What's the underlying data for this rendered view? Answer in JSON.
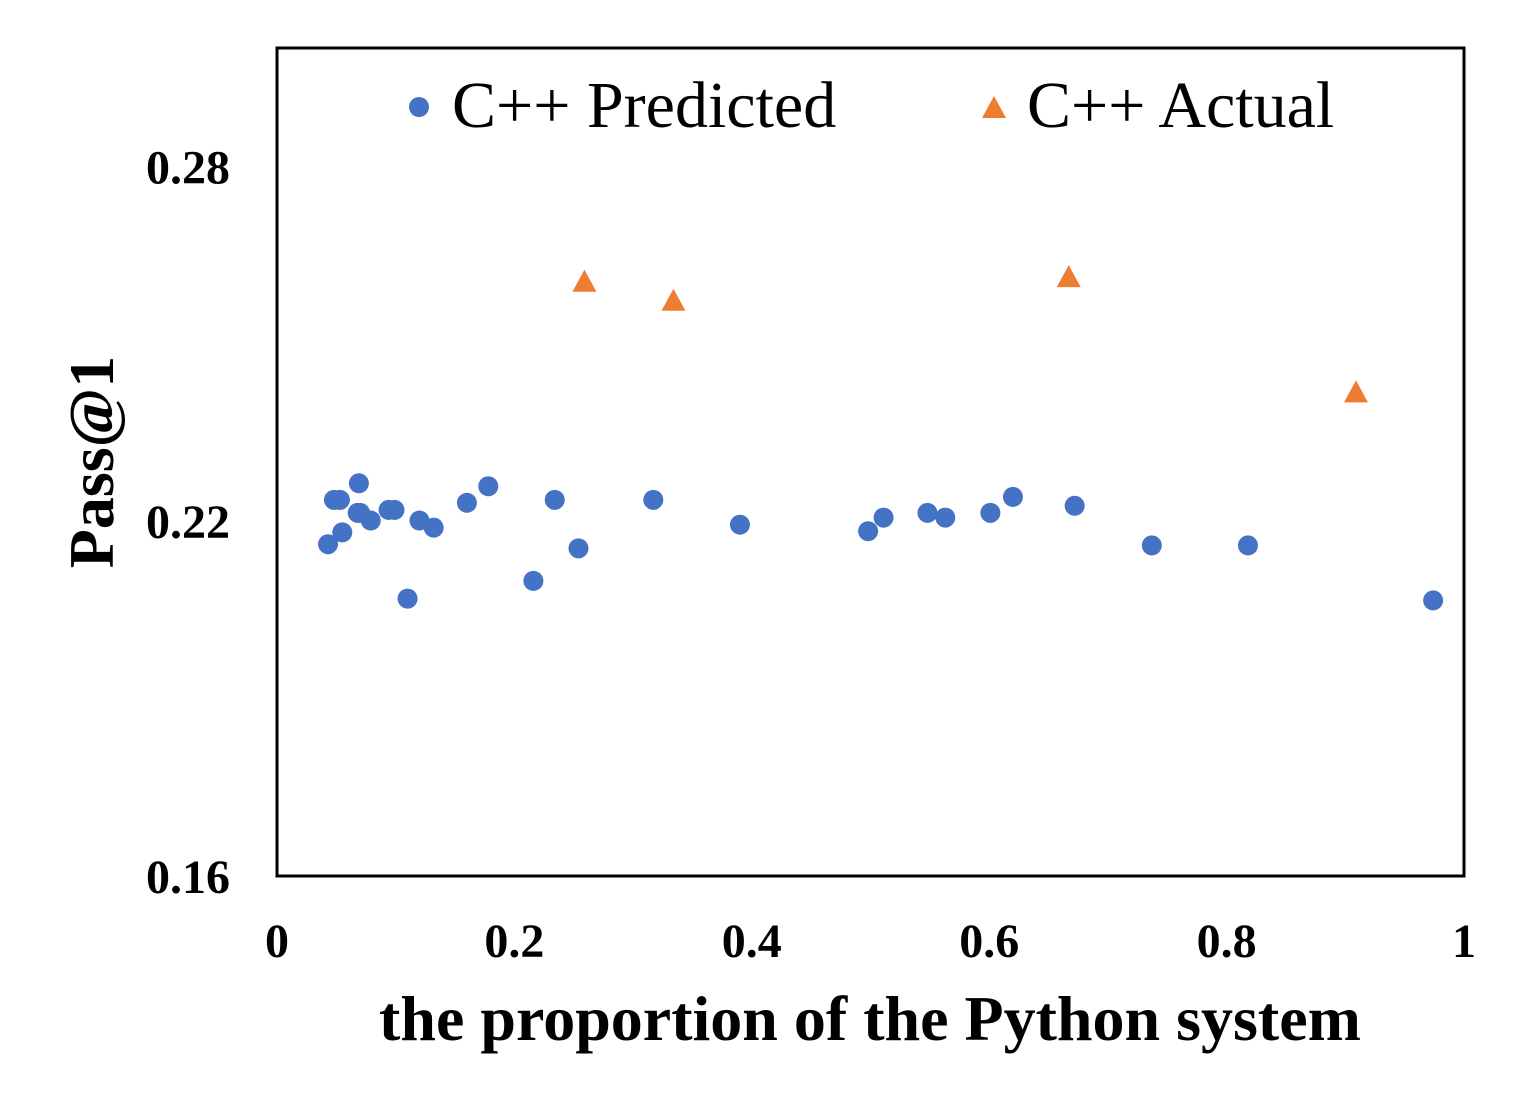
{
  "chart_data": {
    "type": "scatter",
    "title": "",
    "xlabel": "the proportion of the Python system",
    "ylabel": "Pass@1",
    "xlim": [
      0,
      1
    ],
    "ylim": [
      0.16,
      0.3
    ],
    "xticks": [
      0,
      0.2,
      0.4,
      0.6,
      0.8,
      1
    ],
    "xtick_labels": [
      "0",
      "0.2",
      "0.4",
      "0.6",
      "0.8",
      "1"
    ],
    "yticks": [
      0.16,
      0.22,
      0.28
    ],
    "ytick_labels": [
      "0.16",
      "0.22",
      "0.28"
    ],
    "grid": false,
    "legend_position": "top",
    "series": [
      {
        "name": "C++ Predicted",
        "marker": "circle",
        "color": "#4472C4",
        "x": [
          0.043,
          0.048,
          0.053,
          0.055,
          0.068,
          0.069,
          0.07,
          0.079,
          0.094,
          0.099,
          0.11,
          0.12,
          0.132,
          0.16,
          0.178,
          0.216,
          0.234,
          0.254,
          0.317,
          0.39,
          0.498,
          0.511,
          0.548,
          0.563,
          0.601,
          0.62,
          0.672,
          0.737,
          0.818,
          0.974
        ],
        "y": [
          0.2161,
          0.2236,
          0.2236,
          0.2181,
          0.2214,
          0.2264,
          0.2214,
          0.2201,
          0.2219,
          0.2219,
          0.2069,
          0.2201,
          0.2189,
          0.2231,
          0.2259,
          0.2099,
          0.2236,
          0.2154,
          0.2236,
          0.2194,
          0.2183,
          0.2206,
          0.2214,
          0.2206,
          0.2214,
          0.2241,
          0.2226,
          0.2159,
          0.2159,
          0.2066
        ]
      },
      {
        "name": "C++ Actual",
        "marker": "triangle",
        "color": "#ED7D31",
        "x": [
          0.259,
          0.334,
          0.667,
          0.909
        ],
        "y": [
          0.2603,
          0.2571,
          0.2611,
          0.2416
        ]
      }
    ]
  }
}
